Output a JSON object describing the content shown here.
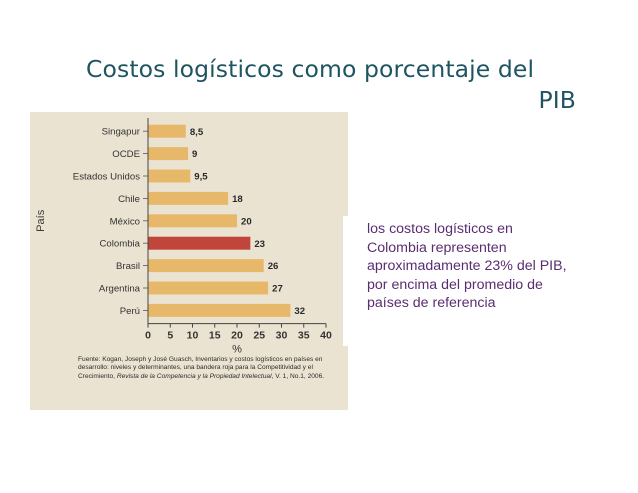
{
  "slide": {
    "title_line1": "Costos logísticos como porcentaje del",
    "title_line2": "PIB",
    "note": "los costos logísticos en Colombia representen aproximadamente 23% del PIB, por encima del promedio de países de referencia"
  },
  "chart_data": {
    "type": "bar",
    "orientation": "horizontal",
    "categories": [
      "Singapur",
      "OCDE",
      "Estados Unidos",
      "Chile",
      "México",
      "Colombia",
      "Brasil",
      "Argentina",
      "Perú"
    ],
    "values": [
      8.5,
      9,
      9.5,
      18,
      20,
      23,
      26,
      27,
      32
    ],
    "value_labels": [
      "8,5",
      "9",
      "9,5",
      "18",
      "20",
      "23",
      "26",
      "27",
      "32"
    ],
    "highlight": "Colombia",
    "xlabel": "%",
    "ylabel": "País",
    "xlim": [
      0,
      40
    ],
    "xticks": [
      "0",
      "5",
      "10",
      "15",
      "20",
      "25",
      "30",
      "35",
      "40"
    ],
    "grid": false,
    "legend": "none",
    "colors": {
      "bar": "#e8b86a",
      "highlight": "#c0463b",
      "background": "#ebe3d2"
    },
    "source": {
      "prefix": "Fuente: Kogan, Joseph y José Guasch, Inventarios y costos logísticos en países en desarrollo: niveles y determinantes, una bandera roja para la Competitividad y el Crecimiento,",
      "journal": "Revista de la Competencia y la Propiedad Intelectual",
      "suffix": ", V. 1, No.1, 2006."
    }
  }
}
